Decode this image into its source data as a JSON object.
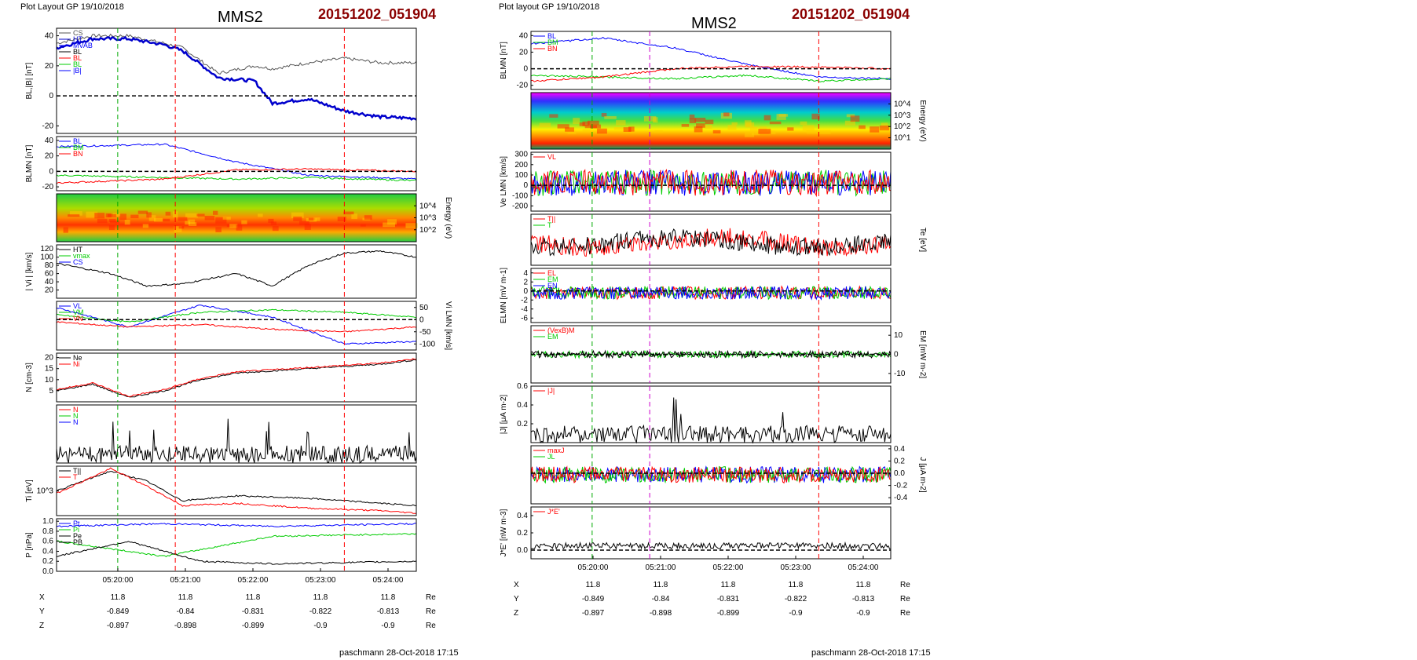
{
  "header": {
    "layout_label": "Plot Layout GP 19/10/2018",
    "layout_label_right": "Plot layout GP 19/10/2018",
    "spacecraft": "MMS2",
    "event": "20151202_051904"
  },
  "footer": {
    "left": "paschmann 28-Oct-2018 17:15",
    "right": "paschmann 28-Oct-2018 17:15"
  },
  "time_ticks": [
    "05:20:00",
    "05:21:00",
    "05:22:00",
    "05:23:00",
    "05:24:00"
  ],
  "orbit": {
    "units": "Re",
    "rows": [
      {
        "name": "X",
        "values": [
          "11.8",
          "11.8",
          "11.8",
          "11.8",
          "11.8"
        ]
      },
      {
        "name": "Y",
        "values": [
          "-0.849",
          "-0.84",
          "-0.831",
          "-0.822",
          "-0.813"
        ]
      },
      {
        "name": "Z",
        "values": [
          "-0.897",
          "-0.898",
          "-0.899",
          "-0.9",
          "-0.9"
        ]
      }
    ]
  },
  "colors": {
    "red": "#ff0000",
    "green": "#00cc00",
    "blue": "#0000ff",
    "black": "#000000",
    "magenta": "#cc00cc",
    "cyan": "#00aacc",
    "gray": "#888888",
    "event": "#8b0000"
  },
  "chart_data": [
    {
      "type": "line",
      "panel": "left-1",
      "ylabel": "BL,|B| [nT]",
      "yticks": [
        "40",
        "20",
        "0",
        "-20"
      ],
      "ylim": [
        -25,
        45
      ],
      "legend": [
        "CS",
        "HT",
        "MVAB",
        "BL",
        "BL",
        "BL",
        "|B|"
      ],
      "series": [
        {
          "name": "|B|",
          "color": "#555555",
          "x": [
            0,
            0.1,
            0.2,
            0.3,
            0.35,
            0.45,
            0.55,
            0.6,
            0.7,
            0.8,
            0.9,
            1.0
          ],
          "y": [
            35,
            40,
            40,
            35,
            32,
            15,
            20,
            18,
            22,
            25,
            22,
            22
          ]
        },
        {
          "name": "BL",
          "color": "#0000cc",
          "x": [
            0,
            0.1,
            0.2,
            0.3,
            0.35,
            0.45,
            0.55,
            0.6,
            0.7,
            0.8,
            0.9,
            1.0
          ],
          "y": [
            32,
            38,
            38,
            34,
            30,
            12,
            10,
            -5,
            -2,
            -10,
            -14,
            -15
          ]
        }
      ]
    },
    {
      "type": "line",
      "panel": "left-2",
      "ylabel": "BLMN [nT]",
      "yticks": [
        "40",
        "20",
        "0",
        "-20"
      ],
      "ylim": [
        -25,
        45
      ],
      "legend": [
        "BL",
        "BM",
        "BN"
      ],
      "series": [
        {
          "name": "BL",
          "color": "#0000ff",
          "x": [
            0,
            0.3,
            0.5,
            0.7,
            1.0
          ],
          "y": [
            32,
            35,
            12,
            -5,
            -10
          ]
        },
        {
          "name": "BM",
          "color": "#00cc00",
          "x": [
            0,
            0.3,
            0.5,
            0.7,
            1.0
          ],
          "y": [
            -5,
            -8,
            -10,
            -8,
            -12
          ]
        },
        {
          "name": "BN",
          "color": "#ff0000",
          "x": [
            0,
            0.3,
            0.5,
            0.7,
            1.0
          ],
          "y": [
            -15,
            -10,
            2,
            3,
            0
          ]
        }
      ]
    },
    {
      "type": "heatmap",
      "panel": "left-3",
      "ylabel": "Energy (eV)",
      "yticks": [
        "10^4",
        "10^3",
        "10^2"
      ]
    },
    {
      "type": "line",
      "panel": "left-4",
      "ylabel": "| Vi | [km/s]",
      "yticks": [
        "120",
        "100",
        "80",
        "60",
        "40",
        "20"
      ],
      "ylim": [
        0,
        130
      ],
      "legend": [
        "HT",
        "vmax",
        "CS"
      ],
      "series": [
        {
          "name": "|Vi|",
          "color": "#000000",
          "x": [
            0,
            0.15,
            0.25,
            0.35,
            0.5,
            0.6,
            0.7,
            0.8,
            0.9,
            1.0
          ],
          "y": [
            85,
            60,
            30,
            35,
            60,
            30,
            80,
            110,
            115,
            100
          ]
        }
      ]
    },
    {
      "type": "line",
      "panel": "left-5",
      "ylabel": "Vi LMN [km/s]",
      "yticks": [
        "50",
        "0",
        "-50",
        "-100"
      ],
      "ylim": [
        -125,
        75
      ],
      "legend": [
        "VL",
        "VM",
        "VN"
      ],
      "series": [
        {
          "name": "VL",
          "color": "#0000ff",
          "x": [
            0,
            0.2,
            0.4,
            0.6,
            0.8,
            1.0
          ],
          "y": [
            50,
            -30,
            60,
            10,
            -100,
            -90
          ]
        },
        {
          "name": "VM",
          "color": "#00cc00",
          "x": [
            0,
            0.2,
            0.4,
            0.6,
            0.8,
            1.0
          ],
          "y": [
            20,
            -10,
            30,
            40,
            30,
            10
          ]
        },
        {
          "name": "VN",
          "color": "#ff0000",
          "x": [
            0,
            0.2,
            0.4,
            0.6,
            0.8,
            1.0
          ],
          "y": [
            -10,
            -30,
            -20,
            -40,
            -50,
            -30
          ]
        }
      ]
    },
    {
      "type": "line",
      "panel": "left-6",
      "ylabel": "N [cm-3]",
      "yticks": [
        "20",
        "15",
        "10",
        "5"
      ],
      "ylim": [
        0,
        22
      ],
      "legend": [
        "Ne",
        "Ni"
      ],
      "series": [
        {
          "name": "Ni",
          "color": "#000000",
          "x": [
            0,
            0.1,
            0.2,
            0.3,
            0.4,
            0.5,
            0.7,
            0.9,
            1.0
          ],
          "y": [
            5,
            8,
            2,
            5,
            10,
            13,
            15,
            17,
            19
          ]
        },
        {
          "name": "Ne",
          "color": "#ff0000",
          "x": [
            0,
            0.1,
            0.2,
            0.3,
            0.4,
            0.5,
            0.7,
            0.9,
            1.0
          ],
          "y": [
            5.5,
            8.5,
            2.5,
            5.5,
            10.5,
            13.5,
            15.5,
            17.5,
            19.5
          ]
        }
      ]
    },
    {
      "type": "line",
      "panel": "left-7",
      "legend": [
        "N",
        "N",
        "N"
      ]
    },
    {
      "type": "line",
      "panel": "left-8",
      "ylabel": "Ti [eV]",
      "yticks": [
        "10^3"
      ],
      "legend": [
        "T||",
        "T"
      ],
      "series": [
        {
          "name": "T",
          "color": "#000000",
          "x": [
            0,
            0.15,
            0.25,
            0.35,
            0.5,
            0.7,
            0.9,
            1.0
          ],
          "y": [
            0.5,
            0.9,
            0.7,
            0.3,
            0.4,
            0.35,
            0.25,
            0.2
          ]
        },
        {
          "name": "T||",
          "color": "#ff0000",
          "x": [
            0,
            0.15,
            0.25,
            0.35,
            0.5,
            0.7,
            0.9,
            1.0
          ],
          "y": [
            0.45,
            0.95,
            0.6,
            0.2,
            0.25,
            0.15,
            0.1,
            0.05
          ]
        }
      ]
    },
    {
      "type": "line",
      "panel": "left-9",
      "ylabel": "P [nPa]",
      "yticks": [
        "1.0",
        "0.8",
        "0.6",
        "0.4",
        "0.2",
        "0.0"
      ],
      "ylim": [
        0,
        1.05
      ],
      "legend": [
        "Pt",
        "Pi",
        "Pe",
        "PB"
      ],
      "series": [
        {
          "name": "Pt",
          "color": "#0000ff",
          "x": [
            0,
            0.3,
            0.6,
            1.0
          ],
          "y": [
            0.9,
            0.95,
            0.9,
            0.95
          ]
        },
        {
          "name": "Pi",
          "color": "#00cc00",
          "x": [
            0,
            0.3,
            0.6,
            1.0
          ],
          "y": [
            0.6,
            0.3,
            0.7,
            0.75
          ]
        },
        {
          "name": "PB",
          "color": "#000000",
          "x": [
            0,
            0.2,
            0.4,
            0.6,
            1.0
          ],
          "y": [
            0.3,
            0.6,
            0.2,
            0.15,
            0.2
          ]
        }
      ]
    },
    {
      "type": "line",
      "panel": "right-1",
      "ylabel": "BLMN [nT]",
      "yticks": [
        "40",
        "20",
        "0",
        "-20"
      ],
      "ylim": [
        -25,
        45
      ],
      "legend": [
        "BL",
        "BM",
        "BN"
      ],
      "series": [
        {
          "name": "BL",
          "color": "#0000ff",
          "x": [
            0,
            0.2,
            0.4,
            0.6,
            0.8,
            1.0
          ],
          "y": [
            30,
            37,
            25,
            5,
            -10,
            -12
          ]
        },
        {
          "name": "BM",
          "color": "#00cc00",
          "x": [
            0,
            0.2,
            0.4,
            0.6,
            0.8,
            1.0
          ],
          "y": [
            -8,
            -10,
            -12,
            -8,
            -15,
            -12
          ]
        },
        {
          "name": "BN",
          "color": "#ff0000",
          "x": [
            0,
            0.2,
            0.4,
            0.6,
            0.8,
            1.0
          ],
          "y": [
            -15,
            -10,
            0,
            3,
            2,
            0
          ]
        }
      ]
    },
    {
      "type": "heatmap",
      "panel": "right-2",
      "ylabel": "Energy (eV)",
      "yticks": [
        "10^4",
        "10^3",
        "10^2",
        "10^1"
      ]
    },
    {
      "type": "line",
      "panel": "right-3",
      "ylabel": "Ve LMN [km/s]",
      "yticks": [
        "300",
        "200",
        "100",
        "0",
        "-100",
        "-200"
      ],
      "ylim": [
        -250,
        320
      ],
      "legend": [
        "VL"
      ]
    },
    {
      "type": "line",
      "panel": "right-4",
      "ylabel": "Te [eV]",
      "legend": [
        "T||",
        "T"
      ]
    },
    {
      "type": "line",
      "panel": "right-5",
      "ylabel": "ELMN [mV m-1]",
      "yticks": [
        "4",
        "2",
        "0",
        "-2",
        "-4",
        "-6"
      ],
      "ylim": [
        -7,
        5
      ],
      "legend": [
        "EL",
        "EM",
        "EN"
      ]
    },
    {
      "type": "line",
      "panel": "right-6",
      "ylabel": "EM [mW m-2]",
      "yticks": [
        "10",
        "0",
        "-10"
      ],
      "ylim": [
        -15,
        15
      ],
      "legend": [
        "(VexB)M",
        "EM"
      ]
    },
    {
      "type": "line",
      "panel": "right-7",
      "ylabel": "|J| [μA m-2]",
      "yticks": [
        "0.6",
        "0.4",
        "0.2"
      ],
      "ylim": [
        0,
        0.6
      ],
      "legend": [
        "|J|"
      ]
    },
    {
      "type": "line",
      "panel": "right-8",
      "ylabel": "J [μA m-2]",
      "yticks": [
        "0.4",
        "0.2",
        "0.0",
        "-0.2",
        "-0.4"
      ],
      "ylim": [
        -0.5,
        0.45
      ],
      "legend": [
        "maxJ",
        "JL"
      ]
    },
    {
      "type": "line",
      "panel": "right-9",
      "ylabel": "J*E' [nW m-3]",
      "yticks": [
        "0.4",
        "0.2",
        "0.0"
      ],
      "ylim": [
        -0.1,
        0.5
      ],
      "legend": [
        "J*E'"
      ]
    }
  ]
}
